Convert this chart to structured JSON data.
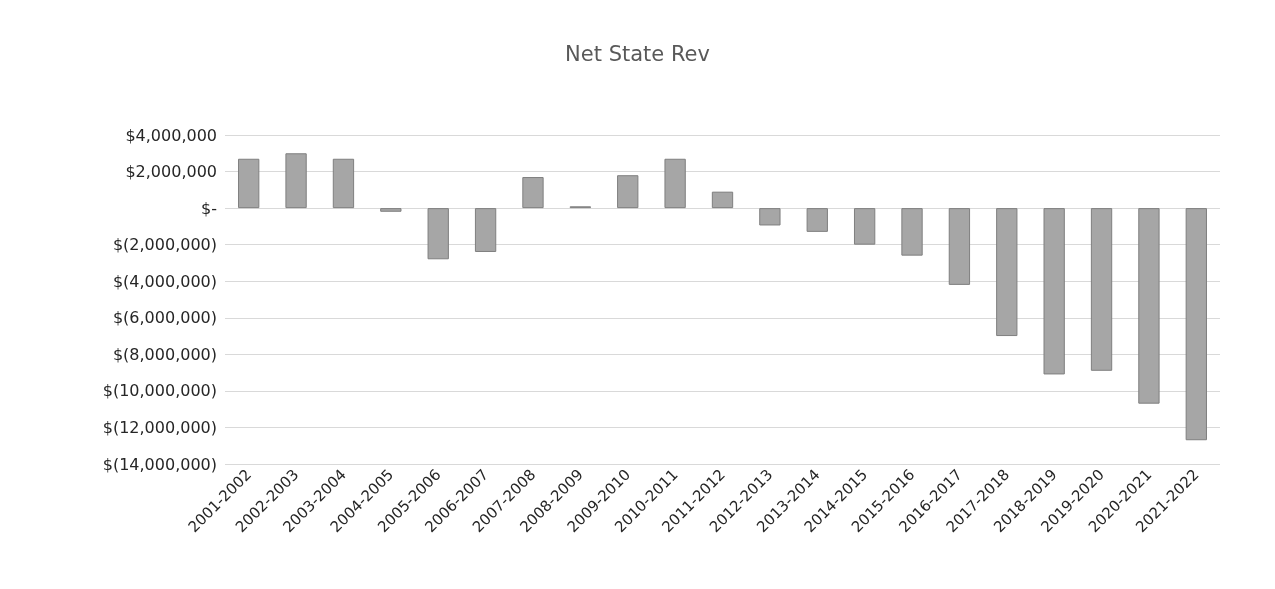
{
  "chart_data": {
    "type": "bar",
    "title": "Net State Rev",
    "categories": [
      "2001-2002",
      "2002-2003",
      "2003-2004",
      "2004-2005",
      "2005-2006",
      "2006-2007",
      "2007-2008",
      "2008-2009",
      "2009-2010",
      "2010-2011",
      "2011-2012",
      "2012-2013",
      "2013-2014",
      "2014-2015",
      "2015-2016",
      "2016-2017",
      "2017-2018",
      "2018-2019",
      "2019-2020",
      "2020-2021",
      "2021-2022"
    ],
    "values": [
      2700000,
      3000000,
      2700000,
      -200000,
      -2800000,
      -2400000,
      1700000,
      100000,
      1800000,
      2700000,
      900000,
      -950000,
      -1300000,
      -2000000,
      -2600000,
      -4200000,
      -7000000,
      -9100000,
      -8900000,
      -10700000,
      -12700000
    ],
    "color": "#a6a6a6",
    "ylim": [
      -14000000,
      4000000
    ],
    "yticks": [
      {
        "value": 4000000,
        "label": "$4,000,000"
      },
      {
        "value": 2000000,
        "label": "$2,000,000"
      },
      {
        "value": 0,
        "label": "$-"
      },
      {
        "value": -2000000,
        "label": "$(2,000,000)"
      },
      {
        "value": -4000000,
        "label": "$(4,000,000)"
      },
      {
        "value": -6000000,
        "label": "$(6,000,000)"
      },
      {
        "value": -8000000,
        "label": "$(8,000,000)"
      },
      {
        "value": -10000000,
        "label": "$(10,000,000)"
      },
      {
        "value": -12000000,
        "label": "$(12,000,000)"
      },
      {
        "value": -14000000,
        "label": "$(14,000,000)"
      }
    ],
    "grid": true
  }
}
